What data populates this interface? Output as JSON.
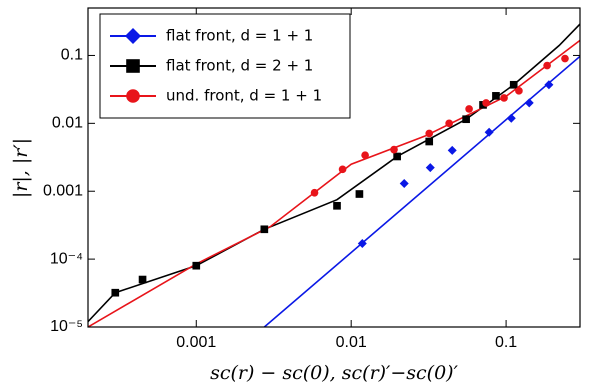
{
  "chart_data": {
    "type": "scatter",
    "xlabel": "sc(r) − sc(0),  sc(r)′−sc(0)′",
    "ylabel": "|r|, |r′|",
    "xscale": "log",
    "yscale": "log",
    "xlim": [
      0.0002,
      0.3
    ],
    "ylim": [
      1e-05,
      0.5
    ],
    "xticks": [
      0.001,
      0.01,
      0.1
    ],
    "yticks": [
      {
        "value": 1e-05,
        "label": "10⁻⁵"
      },
      {
        "value": 0.0001,
        "label": "10⁻⁴"
      },
      0.001,
      0.01,
      0.1
    ],
    "legend": "upper left",
    "series": [
      {
        "name": "flat front, d = 1 + 1",
        "color": "#0a18e6",
        "marker": "diamond",
        "x": [
          0.0118,
          0.022,
          0.0324,
          0.0449,
          0.0777,
          0.108,
          0.141,
          0.189
        ],
        "values": [
          0.00017,
          0.0013,
          0.00223,
          0.004,
          0.0074,
          0.0119,
          0.02,
          0.037
        ],
        "line_x": [
          0.00275,
          0.3
        ],
        "line_values": [
          1e-05,
          0.097
        ]
      },
      {
        "name": "flat front, d = 2 + 1",
        "color": "#000000",
        "marker": "square",
        "x": [
          0.0003,
          0.00045,
          0.001,
          0.00275,
          0.0081,
          0.0113,
          0.0198,
          0.0319,
          0.0552,
          0.071,
          0.086,
          0.112
        ],
        "values": [
          3.2e-05,
          5e-05,
          8e-05,
          0.000275,
          0.00061,
          0.00091,
          0.00325,
          0.0054,
          0.0115,
          0.0187,
          0.0254,
          0.037
        ],
        "line_x": [
          0.0002,
          0.0003,
          0.001,
          0.00275,
          0.0081,
          0.0198,
          0.0552,
          0.112,
          0.22,
          0.3
        ],
        "line_values": [
          1.2e-05,
          3.2e-05,
          8e-05,
          0.000275,
          0.00075,
          0.00325,
          0.0115,
          0.037,
          0.14,
          0.29
        ]
      },
      {
        "name": "und. front, d = 1 + 1",
        "color": "#e8141a",
        "marker": "circle",
        "x": [
          0.0058,
          0.0088,
          0.0123,
          0.0189,
          0.0319,
          0.0429,
          0.0577,
          0.0743,
          0.097,
          0.121,
          0.184,
          0.24
        ],
        "values": [
          0.00095,
          0.0021,
          0.0034,
          0.0041,
          0.0071,
          0.01,
          0.0163,
          0.02,
          0.0237,
          0.0301,
          0.071,
          0.09
        ],
        "line_x": [
          0.0002,
          0.001,
          0.003,
          0.01,
          0.03,
          0.1,
          0.3
        ],
        "line_values": [
          1e-05,
          8.5e-05,
          0.0003,
          0.0025,
          0.0065,
          0.025,
          0.167
        ]
      }
    ]
  }
}
